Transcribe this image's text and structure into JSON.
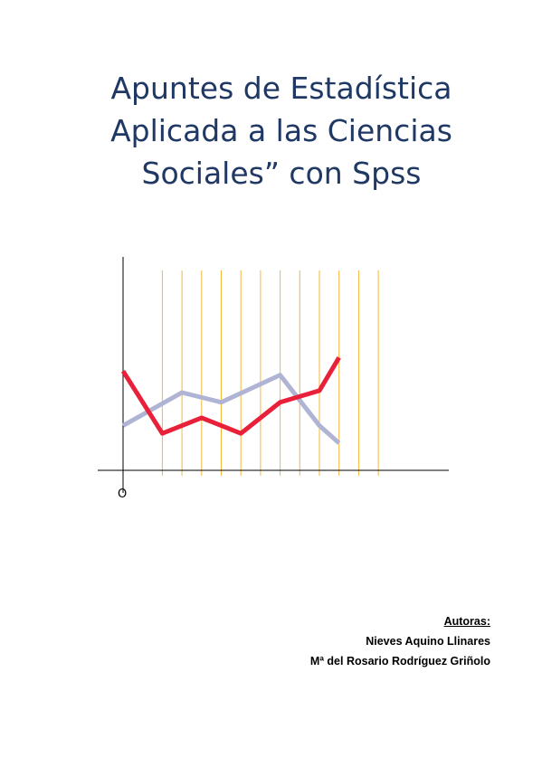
{
  "title": {
    "lines": [
      "Apuntes de Estadística",
      "Aplicada a las Ciencias",
      "Sociales” con Spss"
    ]
  },
  "chart_data": {
    "type": "line",
    "origin_label": "O",
    "x": [
      0,
      1,
      2,
      3,
      4,
      5,
      6,
      7,
      8,
      9,
      10,
      11,
      12,
      13
    ],
    "series": [
      {
        "color": "#e8203a",
        "values": [
          5.1,
          null,
          1.9,
          null,
          2.7,
          null,
          1.9,
          null,
          3.5,
          null,
          4.1,
          5.8,
          null,
          null
        ]
      },
      {
        "color": "#b0b4d4",
        "values": [
          2.3,
          null,
          null,
          4.0,
          null,
          3.5,
          null,
          null,
          4.9,
          null,
          2.3,
          1.4,
          null,
          null
        ]
      }
    ],
    "grid_color": "#f5b73a",
    "grid": true,
    "xlabel": "",
    "ylabel": ""
  },
  "authors": {
    "heading": "Autoras:",
    "names": [
      "Nieves Aquino Llinares",
      "Mª del Rosario Rodríguez Griñolo"
    ]
  }
}
